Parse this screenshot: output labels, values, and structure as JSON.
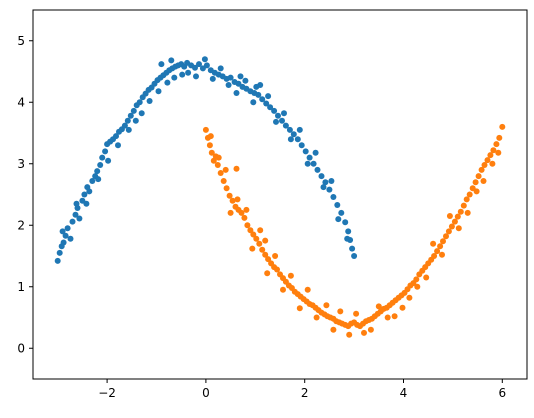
{
  "chart_data": {
    "type": "scatter",
    "title": "",
    "xlabel": "",
    "ylabel": "",
    "xlim": [
      -3.5,
      6.5
    ],
    "ylim": [
      -0.5,
      5.5
    ],
    "x_ticks": [
      -2,
      0,
      2,
      4,
      6
    ],
    "y_ticks": [
      0,
      1,
      2,
      3,
      4,
      5
    ],
    "x_tick_labels": [
      "−2",
      "0",
      "2",
      "4",
      "6"
    ],
    "y_tick_labels": [
      "0",
      "1",
      "2",
      "3",
      "4",
      "5"
    ],
    "grid": false,
    "legend": "none",
    "series": [
      {
        "color": "#1f77b4",
        "points": [
          [
            -3.0,
            1.42
          ],
          [
            -2.96,
            1.55
          ],
          [
            -2.92,
            1.66
          ],
          [
            -2.88,
            1.72
          ],
          [
            -2.84,
            1.83
          ],
          [
            -2.8,
            1.95
          ],
          [
            -2.74,
            1.78
          ],
          [
            -2.7,
            2.06
          ],
          [
            -2.64,
            2.17
          ],
          [
            -2.6,
            2.28
          ],
          [
            -2.56,
            2.11
          ],
          [
            -2.5,
            2.4
          ],
          [
            -2.46,
            2.5
          ],
          [
            -2.4,
            2.62
          ],
          [
            -2.36,
            2.55
          ],
          [
            -2.3,
            2.72
          ],
          [
            -2.24,
            2.8
          ],
          [
            -2.2,
            2.88
          ],
          [
            -2.14,
            2.98
          ],
          [
            -2.1,
            3.1
          ],
          [
            -2.04,
            3.2
          ],
          [
            -2.0,
            3.32
          ],
          [
            -1.94,
            3.36
          ],
          [
            -1.88,
            3.4
          ],
          [
            -1.82,
            3.45
          ],
          [
            -1.76,
            3.52
          ],
          [
            -1.7,
            3.56
          ],
          [
            -1.64,
            3.62
          ],
          [
            -1.58,
            3.7
          ],
          [
            -1.52,
            3.78
          ],
          [
            -1.46,
            3.86
          ],
          [
            -1.4,
            3.95
          ],
          [
            -1.34,
            4.0
          ],
          [
            -1.28,
            4.08
          ],
          [
            -1.22,
            4.14
          ],
          [
            -1.16,
            4.2
          ],
          [
            -1.1,
            4.24
          ],
          [
            -1.04,
            4.3
          ],
          [
            -0.98,
            4.36
          ],
          [
            -0.92,
            4.4
          ],
          [
            -0.86,
            4.44
          ],
          [
            -0.8,
            4.48
          ],
          [
            -0.74,
            4.52
          ],
          [
            -0.68,
            4.55
          ],
          [
            -0.62,
            4.58
          ],
          [
            -0.56,
            4.6
          ],
          [
            -0.5,
            4.62
          ],
          [
            -0.44,
            4.58
          ],
          [
            -0.38,
            4.64
          ],
          [
            -0.3,
            4.6
          ],
          [
            -0.22,
            4.56
          ],
          [
            -0.14,
            4.62
          ],
          [
            -0.06,
            4.55
          ],
          [
            0.02,
            4.6
          ],
          [
            0.1,
            4.52
          ],
          [
            0.18,
            4.48
          ],
          [
            0.26,
            4.45
          ],
          [
            0.34,
            4.42
          ],
          [
            0.42,
            4.38
          ],
          [
            0.5,
            4.4
          ],
          [
            0.58,
            4.33
          ],
          [
            0.66,
            4.3
          ],
          [
            0.74,
            4.25
          ],
          [
            0.82,
            4.22
          ],
          [
            0.9,
            4.18
          ],
          [
            0.98,
            4.15
          ],
          [
            1.06,
            4.12
          ],
          [
            1.14,
            4.05
          ],
          [
            1.22,
            3.98
          ],
          [
            1.3,
            3.92
          ],
          [
            1.38,
            3.86
          ],
          [
            1.46,
            3.78
          ],
          [
            1.54,
            3.7
          ],
          [
            1.62,
            3.62
          ],
          [
            1.7,
            3.55
          ],
          [
            1.78,
            3.48
          ],
          [
            1.86,
            3.4
          ],
          [
            1.94,
            3.3
          ],
          [
            2.02,
            3.2
          ],
          [
            2.1,
            3.1
          ],
          [
            2.18,
            3.0
          ],
          [
            2.26,
            2.9
          ],
          [
            2.34,
            2.8
          ],
          [
            2.42,
            2.7
          ],
          [
            2.5,
            2.58
          ],
          [
            2.58,
            2.46
          ],
          [
            2.66,
            2.33
          ],
          [
            2.74,
            2.2
          ],
          [
            2.82,
            2.05
          ],
          [
            2.88,
            1.9
          ],
          [
            2.92,
            1.76
          ],
          [
            2.96,
            1.62
          ],
          [
            3.0,
            1.5
          ],
          [
            -2.9,
            1.9
          ],
          [
            -2.62,
            2.35
          ],
          [
            -2.42,
            2.35
          ],
          [
            -2.18,
            2.75
          ],
          [
            -1.98,
            3.05
          ],
          [
            -1.78,
            3.3
          ],
          [
            -1.56,
            3.55
          ],
          [
            -1.42,
            3.7
          ],
          [
            -1.3,
            3.82
          ],
          [
            -1.14,
            4.02
          ],
          [
            -0.96,
            4.18
          ],
          [
            -0.78,
            4.32
          ],
          [
            -0.64,
            4.4
          ],
          [
            -0.48,
            4.45
          ],
          [
            -0.36,
            4.48
          ],
          [
            -0.2,
            4.42
          ],
          [
            -0.02,
            4.7
          ],
          [
            0.14,
            4.38
          ],
          [
            0.3,
            4.55
          ],
          [
            0.46,
            4.28
          ],
          [
            0.62,
            4.15
          ],
          [
            0.8,
            4.35
          ],
          [
            0.96,
            4.0
          ],
          [
            1.1,
            4.28
          ],
          [
            1.26,
            4.1
          ],
          [
            1.42,
            3.68
          ],
          [
            1.58,
            3.82
          ],
          [
            1.72,
            3.4
          ],
          [
            1.9,
            3.55
          ],
          [
            2.06,
            3.0
          ],
          [
            2.22,
            3.18
          ],
          [
            2.38,
            2.62
          ],
          [
            2.54,
            2.72
          ],
          [
            2.68,
            2.1
          ],
          [
            2.86,
            1.78
          ],
          [
            -0.9,
            4.62
          ],
          [
            -0.7,
            4.68
          ],
          [
            0.7,
            4.42
          ],
          [
            1.02,
            4.25
          ]
        ]
      },
      {
        "color": "#ff7f0e",
        "points": [
          [
            0.0,
            3.55
          ],
          [
            0.04,
            3.42
          ],
          [
            0.08,
            3.3
          ],
          [
            0.12,
            3.18
          ],
          [
            0.16,
            3.05
          ],
          [
            0.2,
            3.12
          ],
          [
            0.24,
            2.98
          ],
          [
            0.3,
            2.85
          ],
          [
            0.36,
            2.72
          ],
          [
            0.42,
            2.6
          ],
          [
            0.48,
            2.48
          ],
          [
            0.54,
            2.4
          ],
          [
            0.6,
            2.3
          ],
          [
            0.66,
            2.25
          ],
          [
            0.72,
            2.2
          ],
          [
            0.78,
            2.12
          ],
          [
            0.84,
            2.0
          ],
          [
            0.9,
            1.92
          ],
          [
            0.96,
            1.85
          ],
          [
            1.02,
            1.78
          ],
          [
            1.08,
            1.7
          ],
          [
            1.14,
            1.6
          ],
          [
            1.2,
            1.52
          ],
          [
            1.26,
            1.45
          ],
          [
            1.32,
            1.38
          ],
          [
            1.38,
            1.32
          ],
          [
            1.44,
            1.28
          ],
          [
            1.5,
            1.2
          ],
          [
            1.56,
            1.14
          ],
          [
            1.62,
            1.08
          ],
          [
            1.68,
            1.02
          ],
          [
            1.74,
            0.98
          ],
          [
            1.8,
            0.92
          ],
          [
            1.86,
            0.88
          ],
          [
            1.92,
            0.84
          ],
          [
            1.98,
            0.8
          ],
          [
            2.04,
            0.76
          ],
          [
            2.1,
            0.72
          ],
          [
            2.16,
            0.7
          ],
          [
            2.22,
            0.66
          ],
          [
            2.28,
            0.62
          ],
          [
            2.34,
            0.58
          ],
          [
            2.4,
            0.55
          ],
          [
            2.46,
            0.52
          ],
          [
            2.52,
            0.5
          ],
          [
            2.58,
            0.48
          ],
          [
            2.64,
            0.44
          ],
          [
            2.7,
            0.42
          ],
          [
            2.76,
            0.4
          ],
          [
            2.82,
            0.38
          ],
          [
            2.88,
            0.36
          ],
          [
            2.94,
            0.4
          ],
          [
            3.0,
            0.42
          ],
          [
            3.06,
            0.38
          ],
          [
            3.12,
            0.36
          ],
          [
            3.18,
            0.4
          ],
          [
            3.24,
            0.44
          ],
          [
            3.3,
            0.46
          ],
          [
            3.36,
            0.48
          ],
          [
            3.42,
            0.52
          ],
          [
            3.48,
            0.56
          ],
          [
            3.54,
            0.6
          ],
          [
            3.6,
            0.64
          ],
          [
            3.66,
            0.66
          ],
          [
            3.72,
            0.7
          ],
          [
            3.78,
            0.74
          ],
          [
            3.84,
            0.78
          ],
          [
            3.9,
            0.82
          ],
          [
            3.96,
            0.86
          ],
          [
            4.02,
            0.9
          ],
          [
            4.08,
            0.96
          ],
          [
            4.14,
            1.02
          ],
          [
            4.2,
            1.06
          ],
          [
            4.26,
            1.12
          ],
          [
            4.32,
            1.2
          ],
          [
            4.38,
            1.26
          ],
          [
            4.44,
            1.32
          ],
          [
            4.5,
            1.38
          ],
          [
            4.56,
            1.44
          ],
          [
            4.62,
            1.5
          ],
          [
            4.68,
            1.58
          ],
          [
            4.74,
            1.66
          ],
          [
            4.8,
            1.74
          ],
          [
            4.86,
            1.82
          ],
          [
            4.92,
            1.9
          ],
          [
            4.98,
            1.98
          ],
          [
            5.04,
            2.06
          ],
          [
            5.1,
            2.14
          ],
          [
            5.16,
            2.22
          ],
          [
            5.22,
            2.32
          ],
          [
            5.28,
            2.42
          ],
          [
            5.34,
            2.5
          ],
          [
            5.4,
            2.6
          ],
          [
            5.46,
            2.7
          ],
          [
            5.52,
            2.8
          ],
          [
            5.58,
            2.9
          ],
          [
            5.64,
            2.98
          ],
          [
            5.7,
            3.06
          ],
          [
            5.76,
            3.14
          ],
          [
            5.82,
            3.22
          ],
          [
            5.88,
            3.32
          ],
          [
            5.94,
            3.42
          ],
          [
            6.0,
            3.6
          ],
          [
            0.1,
            3.45
          ],
          [
            0.26,
            3.1
          ],
          [
            0.4,
            2.9
          ],
          [
            0.5,
            2.2
          ],
          [
            0.64,
            2.42
          ],
          [
            0.82,
            2.25
          ],
          [
            0.94,
            1.62
          ],
          [
            1.1,
            1.92
          ],
          [
            1.24,
            1.22
          ],
          [
            1.4,
            1.5
          ],
          [
            1.56,
            0.95
          ],
          [
            1.72,
            1.18
          ],
          [
            1.9,
            0.65
          ],
          [
            2.06,
            0.95
          ],
          [
            2.24,
            0.5
          ],
          [
            2.44,
            0.7
          ],
          [
            2.58,
            0.3
          ],
          [
            2.72,
            0.6
          ],
          [
            2.9,
            0.22
          ],
          [
            3.04,
            0.56
          ],
          [
            3.2,
            0.25
          ],
          [
            3.34,
            0.3
          ],
          [
            3.5,
            0.68
          ],
          [
            3.68,
            0.5
          ],
          [
            3.82,
            0.52
          ],
          [
            3.98,
            0.66
          ],
          [
            4.12,
            0.82
          ],
          [
            4.28,
            1.0
          ],
          [
            4.46,
            1.15
          ],
          [
            4.6,
            1.7
          ],
          [
            4.78,
            1.52
          ],
          [
            4.94,
            2.15
          ],
          [
            5.12,
            1.95
          ],
          [
            5.3,
            2.2
          ],
          [
            5.48,
            2.55
          ],
          [
            5.62,
            2.72
          ],
          [
            5.8,
            3.0
          ],
          [
            5.92,
            3.18
          ],
          [
            0.62,
            2.92
          ],
          [
            1.2,
            1.75
          ]
        ]
      }
    ]
  }
}
